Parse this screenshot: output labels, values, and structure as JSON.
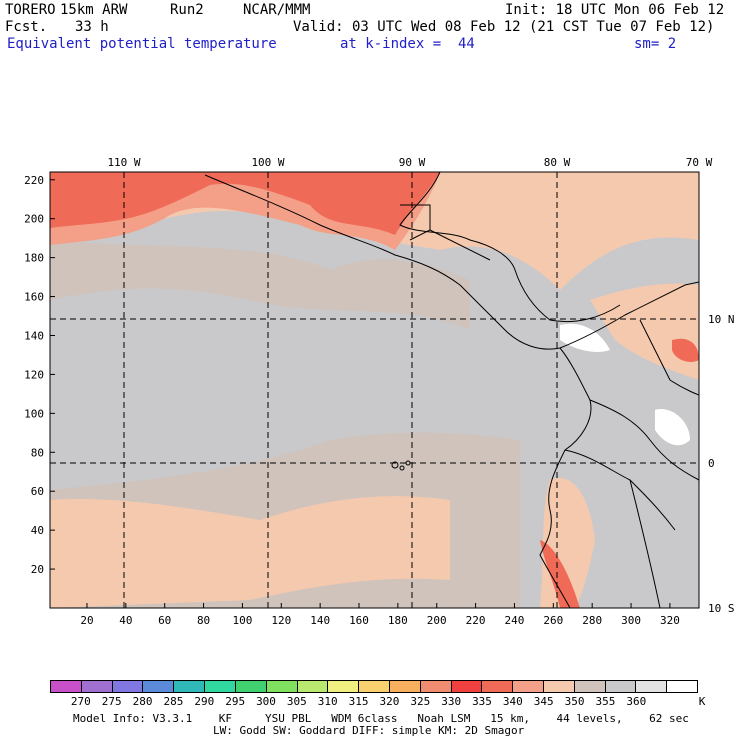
{
  "header": {
    "model": "TORERO",
    "resolution": "15km ARW",
    "run": "Run2",
    "org": "NCAR/MMM",
    "init": "Init: 18 UTC Mon 06 Feb 12",
    "fcst_label": "Fcst.",
    "fcst_value": "33 h",
    "valid": "Valid: 03 UTC Wed 08 Feb 12 (21 CST Tue 07 Feb 12)",
    "field": "Equivalent potential temperature",
    "level": "at k-index =  44",
    "smooth": "sm= 2"
  },
  "map": {
    "lon_labels": [
      "110 W",
      "100 W",
      "90 W",
      "80 W",
      "70 W"
    ],
    "lat_labels": [
      "10 N",
      "0",
      "10 S"
    ],
    "y_ticks": [
      "20",
      "40",
      "60",
      "80",
      "100",
      "120",
      "140",
      "160",
      "180",
      "200",
      "220"
    ],
    "x_ticks": [
      "20",
      "40",
      "60",
      "80",
      "100",
      "120",
      "140",
      "160",
      "180",
      "200",
      "220",
      "240",
      "260",
      "280",
      "300",
      "320"
    ],
    "colors": {
      "c340": "#f5c9ae",
      "c345": "#cfc3bc",
      "c350": "#c9c9cb",
      "c335": "#f4a088",
      "c330": "#f06a58",
      "c325": "#f08c70",
      "c360": "#ffffff"
    }
  },
  "colorbar": {
    "labels": [
      "270",
      "275",
      "280",
      "285",
      "290",
      "295",
      "300",
      "305",
      "310",
      "315",
      "320",
      "325",
      "330",
      "335",
      "340",
      "345",
      "350",
      "355",
      "360"
    ],
    "unit": "K",
    "colors": [
      "#c850c8",
      "#a070d0",
      "#8078e0",
      "#5a8ad8",
      "#30b8b8",
      "#30d8a0",
      "#40d070",
      "#80e060",
      "#b8e870",
      "#f0f080",
      "#f8d070",
      "#f8b060",
      "#f08c70",
      "#f04040",
      "#f06a58",
      "#f4a088",
      "#f5c9ae",
      "#cfc3bc",
      "#c9c9cb",
      "#e2e2e2",
      "#ffffff"
    ]
  },
  "footer": {
    "line1": "Model Info: V3.3.1    KF     YSU PBL   WDM 6class   Noah LSM   15 km,    44 levels,    62 sec",
    "line2": "LW: Godd SW: Goddard DIFF: simple KM: 2D Smagor"
  }
}
